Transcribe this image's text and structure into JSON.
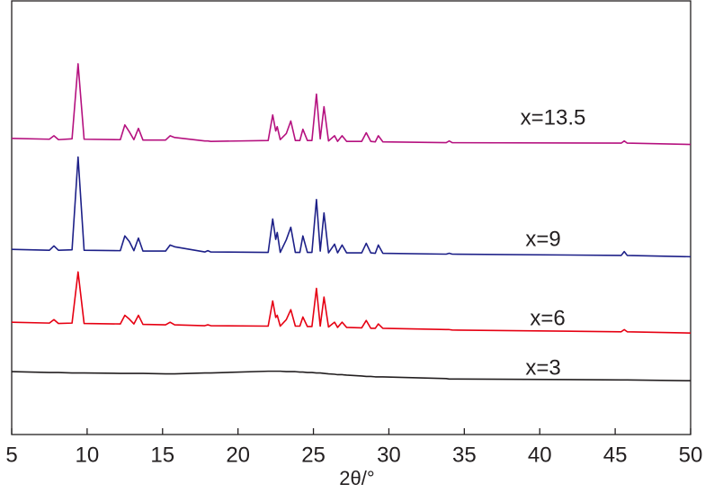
{
  "chart_data": {
    "type": "line",
    "xlabel": "2θ/°",
    "xlim": [
      5,
      50
    ],
    "xticks": [
      5,
      10,
      15,
      20,
      25,
      30,
      35,
      40,
      45,
      50
    ],
    "ylim": [
      0,
      100
    ],
    "x": [
      5,
      7.5,
      7.8,
      8.1,
      9.0,
      9.4,
      9.8,
      12.2,
      12.5,
      12.8,
      13.1,
      13.4,
      13.7,
      15.2,
      15.5,
      15.8,
      17.8,
      18.0,
      18.2,
      22.0,
      22.3,
      22.5,
      22.6,
      22.8,
      23.2,
      23.5,
      23.8,
      24.1,
      24.3,
      24.6,
      24.9,
      25.2,
      25.45,
      25.7,
      26.0,
      26.4,
      26.6,
      26.9,
      27.2,
      28.2,
      28.5,
      28.8,
      29.1,
      29.3,
      29.6,
      33.8,
      34.0,
      34.2,
      45.4,
      45.6,
      45.8,
      50
    ],
    "series": [
      {
        "name": "x=3",
        "color": "#231f20",
        "values": [
          14.5,
          14.3,
          14.3,
          14.3,
          14.2,
          14.2,
          14.2,
          14.1,
          14.1,
          14.1,
          14.1,
          14.1,
          14.1,
          14.0,
          14.0,
          14.0,
          14.2,
          14.2,
          14.2,
          14.6,
          14.6,
          14.6,
          14.6,
          14.6,
          14.5,
          14.5,
          14.5,
          14.4,
          14.4,
          14.3,
          14.3,
          14.2,
          14.2,
          14.1,
          14.0,
          13.9,
          13.8,
          13.8,
          13.7,
          13.5,
          13.4,
          13.4,
          13.3,
          13.3,
          13.3,
          12.9,
          12.8,
          12.8,
          12.6,
          12.6,
          12.6,
          12.4
        ]
      },
      {
        "name": "x=6",
        "color": "#e60012",
        "values": [
          25.9,
          25.7,
          26.5,
          25.6,
          25.7,
          37.5,
          25.6,
          25.5,
          27.5,
          26.6,
          25.5,
          27.5,
          25.4,
          25.3,
          25.9,
          25.3,
          25.1,
          25.3,
          25.1,
          25.0,
          30.8,
          27.0,
          27.5,
          25.0,
          26.5,
          28.8,
          25.0,
          25.0,
          27.1,
          24.9,
          24.9,
          33.7,
          25.0,
          31.7,
          24.8,
          25.9,
          24.7,
          25.9,
          24.7,
          24.6,
          26.3,
          24.5,
          24.5,
          25.5,
          24.5,
          24.2,
          24.2,
          24.1,
          23.7,
          24.2,
          23.7,
          23.4
        ]
      },
      {
        "name": "x=9",
        "color": "#1d2088",
        "values": [
          42.7,
          42.5,
          43.5,
          42.5,
          42.6,
          64.0,
          42.5,
          42.4,
          45.8,
          44.5,
          42.4,
          45.3,
          42.3,
          42.3,
          43.7,
          43.3,
          42.1,
          42.4,
          42.1,
          42.0,
          49.7,
          45.0,
          46.6,
          42.0,
          44.9,
          47.8,
          42.0,
          42.0,
          45.8,
          42.0,
          42.0,
          54.2,
          42.3,
          51.1,
          41.9,
          43.9,
          41.9,
          43.7,
          41.9,
          41.9,
          44.1,
          41.9,
          41.8,
          43.7,
          41.8,
          41.6,
          41.8,
          41.6,
          41.3,
          42.2,
          41.3,
          41.0
        ]
      },
      {
        "name": "x=13.5",
        "color": "#b5117f",
        "values": [
          68.3,
          68.1,
          68.9,
          68.0,
          68.2,
          85.5,
          68.1,
          68.0,
          71.4,
          69.8,
          68.0,
          70.6,
          67.9,
          67.9,
          68.9,
          68.5,
          67.7,
          67.7,
          67.6,
          67.8,
          73.7,
          70.0,
          71.0,
          68.0,
          69.4,
          72.3,
          67.8,
          67.8,
          70.4,
          67.8,
          67.8,
          78.5,
          68.2,
          75.6,
          67.7,
          68.9,
          67.6,
          68.9,
          67.6,
          67.6,
          69.6,
          67.6,
          67.5,
          68.9,
          67.5,
          67.3,
          67.7,
          67.3,
          67.2,
          67.7,
          67.2,
          66.9
        ]
      }
    ]
  }
}
